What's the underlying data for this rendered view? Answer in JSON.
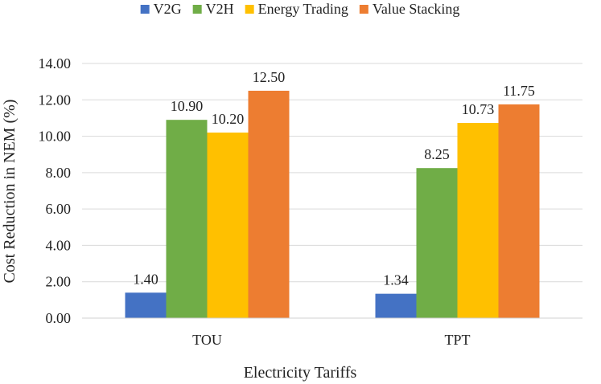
{
  "chart_data": {
    "type": "bar",
    "title": "",
    "xlabel": "Electricity Tariffs",
    "ylabel": "Cost Reduction in NEM (%)",
    "categories": [
      "TOU",
      "TPT"
    ],
    "ylim": [
      0,
      14
    ],
    "yticks": [
      "0.00",
      "2.00",
      "4.00",
      "6.00",
      "8.00",
      "10.00",
      "12.00",
      "14.00"
    ],
    "grid": true,
    "legend_position": "top",
    "series": [
      {
        "name": "V2G",
        "color": "#4472C4",
        "values": [
          1.4,
          1.34
        ],
        "labels": [
          "1.40",
          "1.34"
        ]
      },
      {
        "name": "V2H",
        "color": "#70AD47",
        "values": [
          10.9,
          8.25
        ],
        "labels": [
          "10.90",
          "8.25"
        ]
      },
      {
        "name": "Energy Trading",
        "color": "#FFC000",
        "values": [
          10.2,
          10.73
        ],
        "labels": [
          "10.20",
          "10.73"
        ]
      },
      {
        "name": "Value Stacking",
        "color": "#ED7D31",
        "values": [
          12.5,
          11.75
        ],
        "labels": [
          "12.50",
          "11.75"
        ]
      }
    ]
  }
}
